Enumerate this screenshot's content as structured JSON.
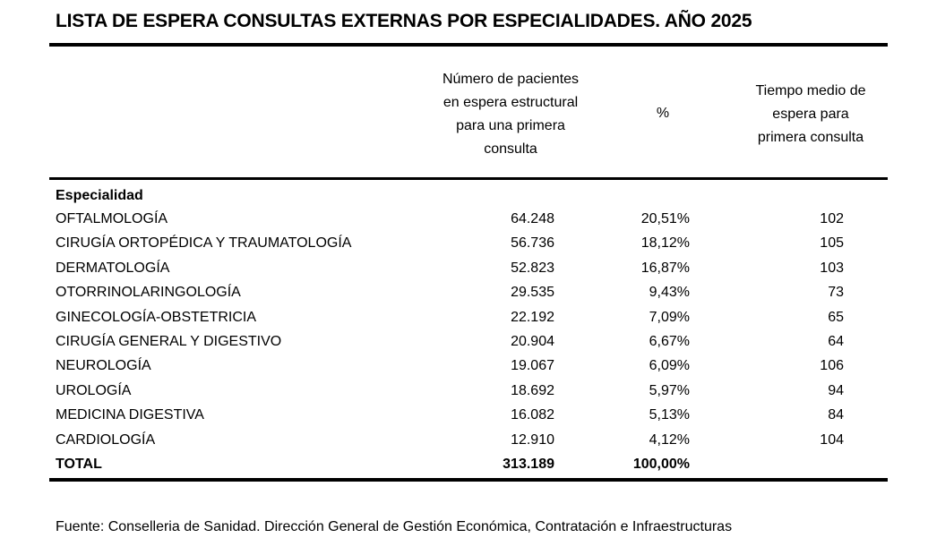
{
  "title": "LISTA DE ESPERA CONSULTAS EXTERNAS POR ESPECIALIDADES. AÑO 2025",
  "headers": {
    "patients": [
      "Número de pacientes",
      "en espera estructural",
      "para una primera",
      "consulta"
    ],
    "percent": "%",
    "time": [
      "Tiempo medio de",
      "espera para",
      "primera consulta"
    ]
  },
  "section_label": "Especialidad",
  "rows": [
    {
      "name": "OFTALMOLOGÍA",
      "patients": "64.248",
      "percent": "20,51%",
      "time": "102"
    },
    {
      "name": "CIRUGÍA ORTOPÉDICA Y TRAUMATOLOGÍA",
      "patients": "56.736",
      "percent": "18,12%",
      "time": "105"
    },
    {
      "name": "DERMATOLOGÍA",
      "patients": "52.823",
      "percent": "16,87%",
      "time": "103"
    },
    {
      "name": "OTORRINOLARINGOLOGÍA",
      "patients": "29.535",
      "percent": "9,43%",
      "time": "73"
    },
    {
      "name": "GINECOLOGÍA-OBSTETRICIA",
      "patients": "22.192",
      "percent": "7,09%",
      "time": "65"
    },
    {
      "name": "CIRUGÍA GENERAL Y DIGESTIVO",
      "patients": "20.904",
      "percent": "6,67%",
      "time": "64"
    },
    {
      "name": "NEUROLOGÍA",
      "patients": "19.067",
      "percent": "6,09%",
      "time": "106"
    },
    {
      "name": "UROLOGÍA",
      "patients": "18.692",
      "percent": "5,97%",
      "time": "94"
    },
    {
      "name": "MEDICINA DIGESTIVA",
      "patients": "16.082",
      "percent": "5,13%",
      "time": "84"
    },
    {
      "name": "CARDIOLOGÍA",
      "patients": "12.910",
      "percent": "4,12%",
      "time": "104"
    }
  ],
  "total": {
    "name": "TOTAL",
    "patients": "313.189",
    "percent": "100,00%"
  },
  "source": "Fuente: Conselleria de Sanidad. Dirección General de Gestión Económica, Contratación e Infraestructuras"
}
